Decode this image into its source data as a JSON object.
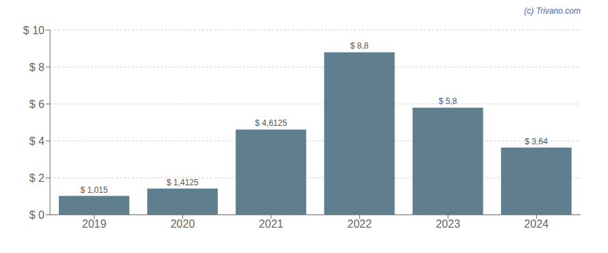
{
  "chart_data": {
    "type": "bar",
    "categories": [
      "2019",
      "2020",
      "2021",
      "2022",
      "2023",
      "2024"
    ],
    "values": [
      1.015,
      1.4125,
      4.6125,
      8.8,
      5.8,
      3.64
    ],
    "value_labels": [
      "$ 1,015",
      "$ 1,4125",
      "$ 4,6125",
      "$ 8,8",
      "$ 5,8",
      "$ 3,64"
    ],
    "data_labels": true,
    "color": "#5f7f8f",
    "ylim": [
      0,
      10
    ],
    "yticks": [
      {
        "value": 0,
        "label": "$ 0"
      },
      {
        "value": 2,
        "label": "$ 2"
      },
      {
        "value": 4,
        "label": "$ 4"
      },
      {
        "value": 6,
        "label": "$ 6"
      },
      {
        "value": 8,
        "label": "$ 8"
      },
      {
        "value": 10,
        "label": "$ 10"
      }
    ],
    "grid": true,
    "annotations": [
      "(c) Trivano.com"
    ]
  }
}
